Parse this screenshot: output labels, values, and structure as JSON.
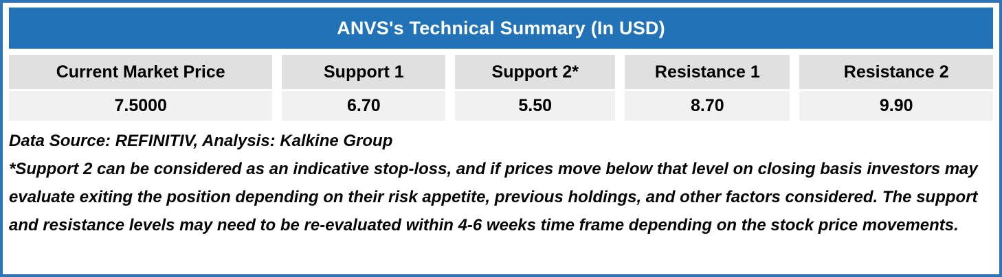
{
  "title": "ANVS's Technical Summary (In USD)",
  "table": {
    "columns": [
      "Current Market Price",
      "Support 1",
      "Support 2*",
      "Resistance 1",
      "Resistance 2"
    ],
    "values": [
      "7.5000",
      "6.70",
      "5.50",
      "8.70",
      "9.90"
    ]
  },
  "footnotes": {
    "source": "Data Source: REFINITIV, Analysis: Kalkine Group",
    "disclaimer": "*Support 2 can be considered as an indicative stop-loss, and if prices move below that level on closing basis investors may evaluate exiting the position depending on their risk appetite, previous holdings, and other factors considered. The support and resistance levels may need to be re-evaluated within 4-6 weeks time frame depending on the stock price movements."
  },
  "colors": {
    "title_bar_bg": "#2272B8",
    "title_text": "#FFFFFF",
    "outer_border": "#2E74B6",
    "header_cell_bg": "#E0E0E0",
    "value_cell_bg": "#F1F1F1",
    "body_text": "#050505"
  },
  "chart_data": {
    "type": "table",
    "title": "ANVS's Technical Summary (In USD)",
    "columns": [
      "Current Market Price",
      "Support 1",
      "Support 2*",
      "Resistance 1",
      "Resistance 2"
    ],
    "rows": [
      [
        7.5,
        6.7,
        5.5,
        8.7,
        9.9
      ]
    ]
  }
}
